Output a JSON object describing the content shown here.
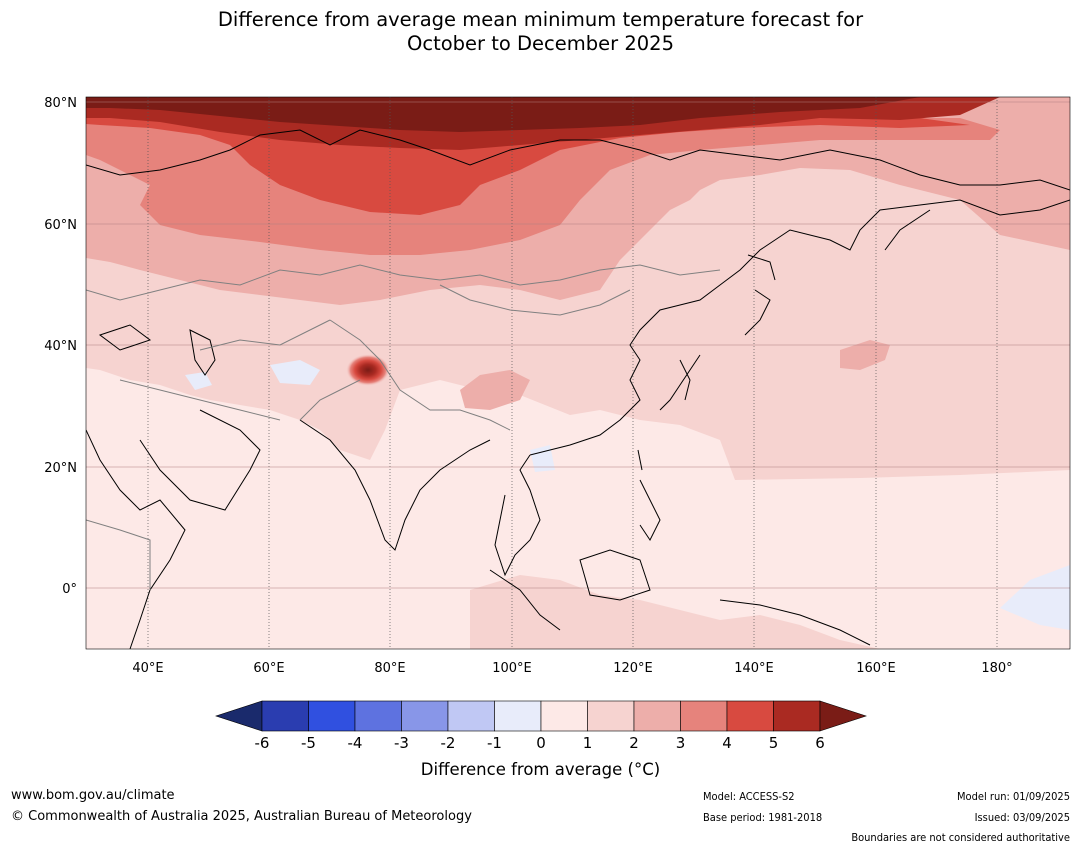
{
  "title": "Difference from average mean minimum temperature forecast for\nOctober to December 2025",
  "map": {
    "lat_labels": [
      "80°N",
      "60°N",
      "40°N",
      "20°N",
      "0°"
    ],
    "lon_labels": [
      "40°E",
      "60°E",
      "80°E",
      "100°E",
      "120°E",
      "140°E",
      "160°E",
      "180°"
    ],
    "features": {
      "land_outline_color": "#000000",
      "border_color": "#808080",
      "grid_color": "#555555"
    }
  },
  "colorbar": {
    "title": "Difference from average (°C)",
    "tick_labels": [
      "-6",
      "-5",
      "-4",
      "-3",
      "-2",
      "-1",
      "0",
      "1",
      "2",
      "3",
      "4",
      "5",
      "6"
    ],
    "colors": [
      "#1a2a6c",
      "#2a3db0",
      "#3050e0",
      "#5e72e0",
      "#8896e8",
      "#c0c8f4",
      "#e8ecfa",
      "#fde9e7",
      "#f6d3d0",
      "#edaeaa",
      "#e6837c",
      "#d84a40",
      "#aa2a22",
      "#7a1c16"
    ]
  },
  "footer": {
    "website": "www.bom.gov.au/climate",
    "copyright": "© Commonwealth of Australia 2025, Australian Bureau of Meteorology",
    "model": "Model: ACCESS-S2",
    "base_period": "Base period: 1981-2018",
    "model_run": "Model run: 01/09/2025",
    "issued": "Issued: 03/09/2025",
    "disclaimer": "Boundaries are not considered authoritative"
  }
}
